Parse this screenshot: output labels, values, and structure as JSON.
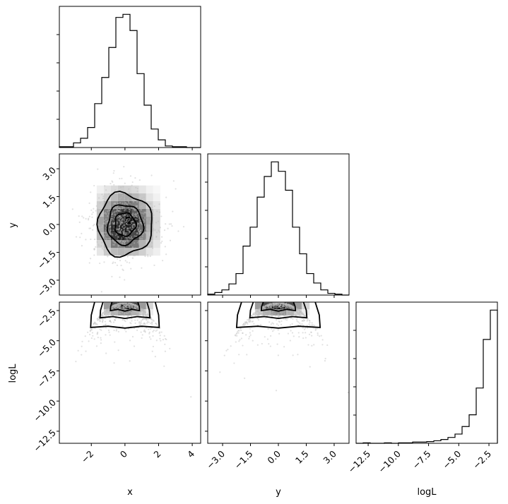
{
  "chart_data": {
    "type": "corner",
    "parameters": [
      "x",
      "y",
      "logL"
    ],
    "axis_labels": {
      "x": "x",
      "y": "y",
      "logL": "logL"
    },
    "colors": {
      "line": "#000000",
      "point": "#bdbdbd",
      "frame": "#000000"
    },
    "ranges": {
      "x": [
        -3.9,
        4.5
      ],
      "y": [
        -3.8,
        3.8
      ],
      "logL": [
        -13.5,
        -1.8
      ]
    },
    "ticks": {
      "x": {
        "values": [
          -2,
          0,
          2,
          4
        ],
        "labels": [
          "−2",
          "0",
          "2",
          "4"
        ]
      },
      "y": {
        "values": [
          -3.0,
          -1.5,
          0.0,
          1.5,
          3.0
        ],
        "labels": [
          "−3.0",
          "−1.5",
          "0.0",
          "1.5",
          "3.0"
        ]
      },
      "logL": {
        "values": [
          -12.5,
          -10.0,
          -7.5,
          -5.0,
          -2.5
        ],
        "labels": [
          "−12.5",
          "−10.0",
          "−7.5",
          "−5.0",
          "−2.5"
        ]
      }
    },
    "histograms": {
      "x": {
        "edges": [
          -3.9,
          -3.48,
          -3.06,
          -2.64,
          -2.22,
          -1.8,
          -1.38,
          -0.96,
          -0.54,
          -0.12,
          0.3,
          0.72,
          1.14,
          1.56,
          1.98,
          2.4,
          2.82,
          3.24,
          3.66,
          4.08,
          4.5
        ],
        "counts": [
          1,
          1,
          6,
          12,
          26,
          57,
          91,
          130,
          169,
          173,
          152,
          96,
          55,
          24,
          10,
          2,
          1,
          1,
          0,
          0
        ]
      },
      "y": {
        "edges": [
          -3.8,
          -3.42,
          -3.04,
          -2.66,
          -2.28,
          -1.9,
          -1.52,
          -1.14,
          -0.76,
          -0.38,
          0.0,
          0.38,
          0.76,
          1.14,
          1.52,
          1.9,
          2.28,
          2.66,
          3.04,
          3.42,
          3.8
        ],
        "counts": [
          1,
          3,
          6,
          13,
          25,
          57,
          79,
          114,
          138,
          155,
          144,
          122,
          79,
          48,
          25,
          14,
          6,
          2,
          1,
          0
        ]
      },
      "logL": {
        "edges": [
          -13.5,
          -12.915,
          -12.33,
          -11.745,
          -11.16,
          -10.575,
          -9.99,
          -9.405,
          -8.82,
          -8.235,
          -7.65,
          -7.065,
          -6.48,
          -5.895,
          -5.31,
          -4.725,
          -4.14,
          -3.555,
          -2.97,
          -2.385,
          -1.8
        ],
        "counts": [
          0,
          1,
          0,
          0,
          1,
          0,
          1,
          1,
          3,
          3,
          4,
          6,
          9,
          14,
          22,
          40,
          68,
          132,
          248,
          318
        ]
      }
    },
    "panels_2d": {
      "y_vs_x": {
        "x_param": "x",
        "y_param": "y",
        "density_peak": [
          0.0,
          0.0
        ],
        "contours": [
          {
            "level": 0.39,
            "rx": 0.62,
            "ry": 0.62
          },
          {
            "level": 0.86,
            "rx": 1.05,
            "ry": 1.07
          },
          {
            "level": 0.98,
            "rx": 1.62,
            "ry": 1.68
          }
        ]
      },
      "logL_vs_x": {
        "x_param": "x",
        "y_param": "logL",
        "density_peak": [
          0.0,
          -1.9
        ],
        "contours": [
          {
            "level": 0.39,
            "half_width": 0.85,
            "floor": -2.5
          },
          {
            "level": 0.86,
            "half_width": 1.45,
            "floor": -3.1
          },
          {
            "level": 0.98,
            "half_width": 2.0,
            "floor": -3.9
          }
        ]
      },
      "logL_vs_y": {
        "x_param": "y",
        "y_param": "logL",
        "density_peak": [
          0.0,
          -1.9
        ],
        "contours": [
          {
            "level": 0.39,
            "half_width": 0.9,
            "floor": -2.5
          },
          {
            "level": 0.86,
            "half_width": 1.5,
            "floor": -3.1
          },
          {
            "level": 0.98,
            "half_width": 2.2,
            "floor": -3.9
          }
        ]
      }
    }
  }
}
